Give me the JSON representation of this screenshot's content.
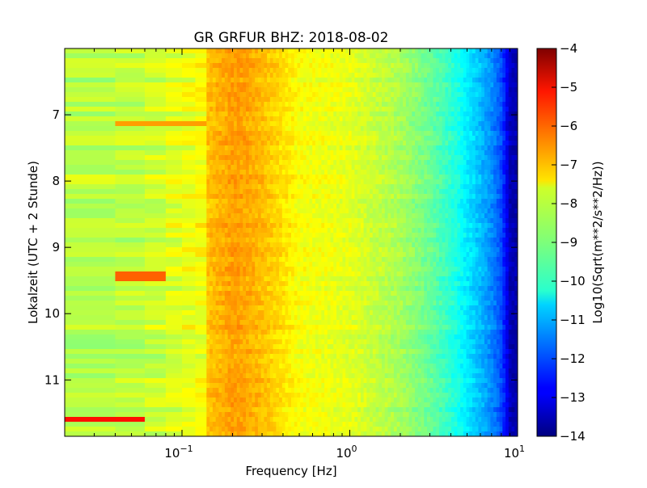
{
  "chart_data": {
    "type": "heatmap",
    "title": "GR GRFUR BHZ: 2018-08-02",
    "xlabel": "Frequency [Hz]",
    "ylabel": "Lokalzeit (UTC + 2 Stunde)",
    "colorbar_label": "Log10(Sqrt(m**2/s**2/Hz))",
    "x_scale": "log",
    "xlim": [
      0.02,
      10
    ],
    "x_ticks": [
      {
        "value": 0.1,
        "base": "10",
        "exp": "−1"
      },
      {
        "value": 1,
        "base": "10",
        "exp": "0"
      },
      {
        "value": 10,
        "base": "10",
        "exp": "1"
      }
    ],
    "ylim": [
      6.0,
      11.85
    ],
    "y_inverted": true,
    "y_ticks": [
      "7",
      "8",
      "9",
      "10",
      "11"
    ],
    "colorbar_range": [
      -14,
      -4
    ],
    "colorbar_ticks": [
      "−4",
      "−5",
      "−6",
      "−7",
      "−8",
      "−9",
      "−10",
      "−11",
      "−12",
      "−13",
      "−14"
    ],
    "colormap": "jet",
    "profile": {
      "freq_hz": [
        0.02,
        0.04,
        0.06,
        0.1,
        0.13,
        0.14,
        0.2,
        0.25,
        0.35,
        0.5,
        1,
        2,
        3,
        4,
        5,
        6,
        7,
        8,
        9,
        10
      ],
      "log10_psd": [
        -8.4,
        -8.5,
        -8.3,
        -8.0,
        -7.8,
        -7.2,
        -6.8,
        -6.9,
        -7.3,
        -7.8,
        -8.0,
        -8.6,
        -9.2,
        -9.8,
        -10.4,
        -10.9,
        -11.4,
        -12.0,
        -13.4,
        -13.6
      ]
    },
    "features": [
      {
        "label": "narrowband band near 7.1 h",
        "time_h": 7.13,
        "freq_range_hz": [
          0.04,
          0.13
        ],
        "log10_psd": -6.8
      },
      {
        "label": "event near 9.45 h",
        "time_h": 9.45,
        "freq_range_hz": [
          0.04,
          0.08
        ],
        "log10_psd": -6.2
      },
      {
        "label": "event near 11.6 h",
        "time_h": 11.6,
        "freq_range_hz": [
          0.02,
          0.06
        ],
        "log10_psd": -5.4
      }
    ],
    "grid": false,
    "legend": "colorbar-right"
  }
}
